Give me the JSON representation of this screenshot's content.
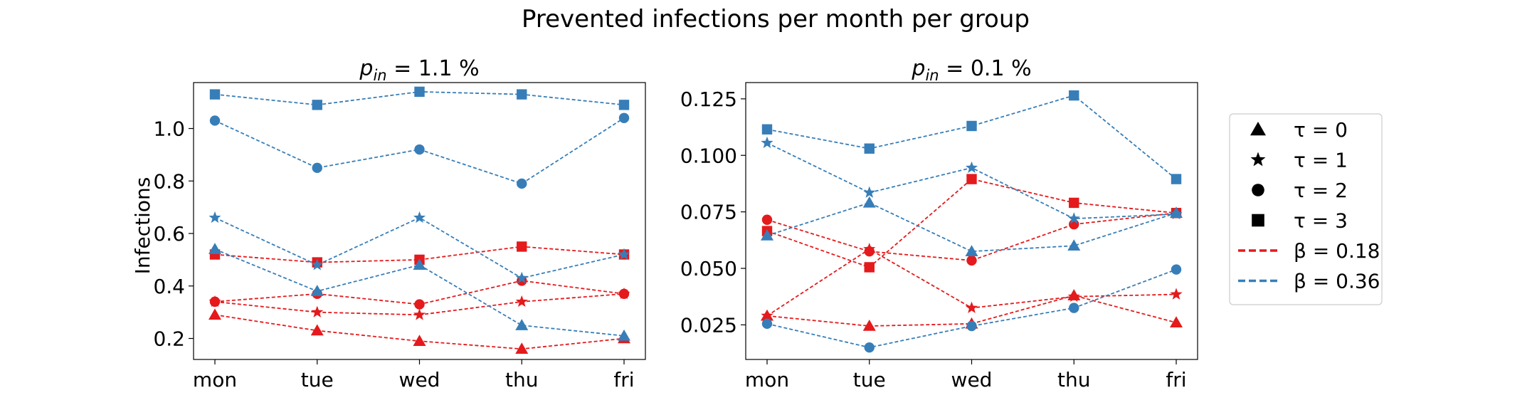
{
  "figure": {
    "suptitle": "Prevented infections per month per group",
    "ylabel": "Infections"
  },
  "colors": {
    "beta_018": "#e41a1c",
    "beta_036": "#377eb8"
  },
  "legend": {
    "placement": "right",
    "entries": [
      {
        "kind": "marker",
        "marker": "triangle",
        "label": "τ = 0"
      },
      {
        "kind": "marker",
        "marker": "star",
        "label": "τ = 1"
      },
      {
        "kind": "marker",
        "marker": "circle",
        "label": "τ = 2"
      },
      {
        "kind": "marker",
        "marker": "square",
        "label": "τ = 3"
      },
      {
        "kind": "line",
        "color": "#e41a1c",
        "label": "β = 0.18"
      },
      {
        "kind": "line",
        "color": "#377eb8",
        "label": "β = 0.36"
      }
    ]
  },
  "chart_data": [
    {
      "type": "line",
      "title_main": "p",
      "title_sub": "in",
      "title_rest": " = 1.1 %",
      "categories": [
        "mon",
        "tue",
        "wed",
        "thu",
        "fri"
      ],
      "ylim": [
        0.12,
        1.175
      ],
      "yticks": [
        0.2,
        0.4,
        0.6,
        0.8,
        1.0
      ],
      "ytick_labels": [
        "0.2",
        "0.4",
        "0.6",
        "0.8",
        "1.0"
      ],
      "grid": false,
      "series": [
        {
          "beta": "0.18",
          "tau": 0,
          "marker": "triangle",
          "values": [
            0.29,
            0.23,
            0.19,
            0.16,
            0.2
          ]
        },
        {
          "beta": "0.18",
          "tau": 1,
          "marker": "star",
          "values": [
            0.34,
            0.3,
            0.29,
            0.34,
            0.37
          ]
        },
        {
          "beta": "0.18",
          "tau": 2,
          "marker": "circle",
          "values": [
            0.34,
            0.37,
            0.33,
            0.42,
            0.37
          ]
        },
        {
          "beta": "0.18",
          "tau": 3,
          "marker": "square",
          "values": [
            0.52,
            0.49,
            0.5,
            0.55,
            0.52
          ]
        },
        {
          "beta": "0.36",
          "tau": 0,
          "marker": "triangle",
          "values": [
            0.54,
            0.38,
            0.48,
            0.25,
            0.21
          ]
        },
        {
          "beta": "0.36",
          "tau": 1,
          "marker": "star",
          "values": [
            0.66,
            0.48,
            0.66,
            0.43,
            0.52
          ]
        },
        {
          "beta": "0.36",
          "tau": 2,
          "marker": "circle",
          "values": [
            1.03,
            0.85,
            0.92,
            0.79,
            1.04
          ]
        },
        {
          "beta": "0.36",
          "tau": 3,
          "marker": "square",
          "values": [
            1.13,
            1.09,
            1.14,
            1.13,
            1.09
          ]
        }
      ]
    },
    {
      "type": "line",
      "title_main": "p",
      "title_sub": "in",
      "title_rest": " = 0.1 %",
      "categories": [
        "mon",
        "tue",
        "wed",
        "thu",
        "fri"
      ],
      "ylim": [
        0.0097,
        0.1322
      ],
      "yticks": [
        0.025,
        0.05,
        0.075,
        0.1,
        0.125
      ],
      "ytick_labels": [
        "0.025",
        "0.050",
        "0.075",
        "0.100",
        "0.125"
      ],
      "grid": false,
      "series": [
        {
          "beta": "0.18",
          "tau": 0,
          "marker": "triangle",
          "values": [
            0.029,
            0.0245,
            0.0255,
            0.038,
            0.026
          ]
        },
        {
          "beta": "0.18",
          "tau": 1,
          "marker": "star",
          "values": [
            0.029,
            0.0585,
            0.0325,
            0.0375,
            0.0385
          ]
        },
        {
          "beta": "0.18",
          "tau": 2,
          "marker": "circle",
          "values": [
            0.0715,
            0.0575,
            0.0535,
            0.0695,
            0.0745
          ]
        },
        {
          "beta": "0.18",
          "tau": 3,
          "marker": "square",
          "values": [
            0.0665,
            0.0505,
            0.0895,
            0.079,
            0.0745
          ]
        },
        {
          "beta": "0.36",
          "tau": 0,
          "marker": "triangle",
          "values": [
            0.0645,
            0.079,
            0.0575,
            0.06,
            0.0745
          ]
        },
        {
          "beta": "0.36",
          "tau": 1,
          "marker": "star",
          "values": [
            0.1055,
            0.0835,
            0.0945,
            0.072,
            0.074
          ]
        },
        {
          "beta": "0.36",
          "tau": 2,
          "marker": "circle",
          "values": [
            0.0255,
            0.015,
            0.0245,
            0.0325,
            0.0495
          ]
        },
        {
          "beta": "0.36",
          "tau": 3,
          "marker": "square",
          "values": [
            0.1115,
            0.103,
            0.113,
            0.1265,
            0.0895
          ]
        }
      ]
    }
  ]
}
